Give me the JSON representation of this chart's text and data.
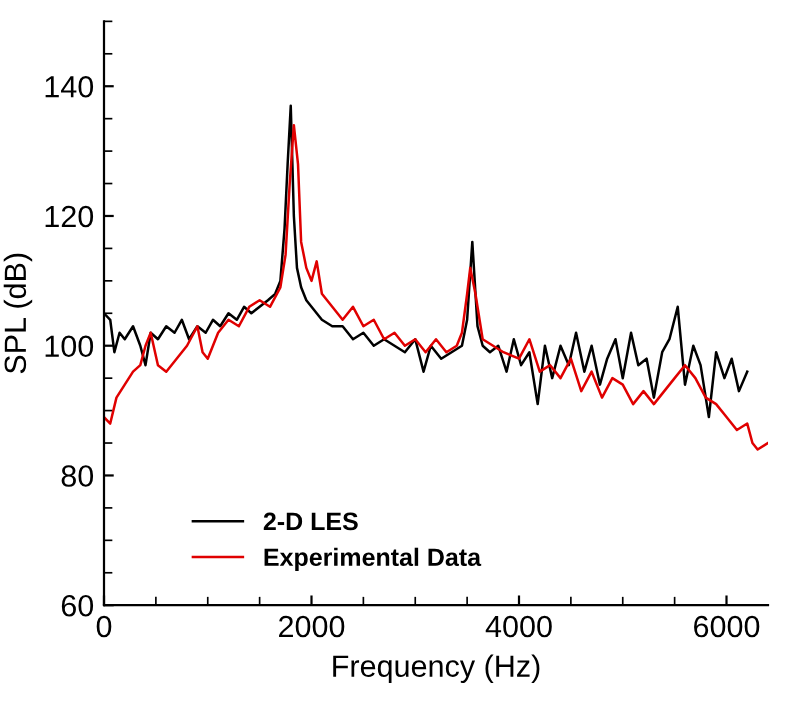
{
  "chart_data": {
    "type": "line",
    "xlabel": "Frequency (Hz)",
    "ylabel": "SPL (dB)",
    "xlim": [
      0,
      6400
    ],
    "ylim": [
      60,
      150
    ],
    "xticks": [
      0,
      2000,
      4000,
      6000
    ],
    "yticks": [
      60,
      80,
      100,
      120,
      140
    ],
    "grid": false,
    "legend": "bottom left",
    "marker": "none",
    "line_style": "solid",
    "series": [
      {
        "name": "2-D LES",
        "color": "#000000",
        "x": [
          0,
          60,
          100,
          150,
          200,
          280,
          350,
          400,
          450,
          520,
          600,
          680,
          750,
          820,
          900,
          980,
          1050,
          1120,
          1200,
          1280,
          1350,
          1420,
          1500,
          1580,
          1650,
          1700,
          1740,
          1770,
          1800,
          1830,
          1860,
          1900,
          1950,
          2000,
          2100,
          2200,
          2300,
          2400,
          2500,
          2600,
          2700,
          2800,
          2900,
          3000,
          3080,
          3150,
          3250,
          3350,
          3450,
          3500,
          3550,
          3600,
          3650,
          3720,
          3800,
          3880,
          3950,
          4020,
          4100,
          4180,
          4250,
          4320,
          4400,
          4480,
          4550,
          4630,
          4700,
          4780,
          4850,
          4930,
          5000,
          5080,
          5150,
          5230,
          5300,
          5380,
          5450,
          5530,
          5600,
          5680,
          5750,
          5830,
          5900,
          5980,
          6050,
          6120,
          6200
        ],
        "values": [
          105,
          104,
          99,
          102,
          101,
          103,
          100,
          97,
          102,
          101,
          103,
          102,
          104,
          101,
          103,
          102,
          104,
          103,
          105,
          104,
          106,
          105,
          106,
          107,
          108,
          110,
          118,
          128,
          137,
          120,
          112,
          109,
          107,
          106,
          104,
          103,
          103,
          101,
          102,
          100,
          101,
          100,
          99,
          101,
          96,
          100,
          98,
          99,
          100,
          104,
          116,
          103,
          100,
          99,
          100,
          96,
          101,
          97,
          99,
          91,
          100,
          95,
          100,
          97,
          102,
          96,
          100,
          94,
          98,
          101,
          95,
          102,
          97,
          98,
          92,
          99,
          101,
          106,
          94,
          100,
          97,
          89,
          99,
          95,
          98,
          93,
          96
        ]
      },
      {
        "name": "Experimental Data",
        "color": "#e00000",
        "x": [
          0,
          60,
          120,
          200,
          280,
          350,
          400,
          450,
          520,
          600,
          700,
          800,
          900,
          950,
          1000,
          1100,
          1200,
          1300,
          1400,
          1500,
          1600,
          1700,
          1750,
          1790,
          1830,
          1870,
          1900,
          1950,
          2000,
          2050,
          2100,
          2200,
          2300,
          2400,
          2500,
          2600,
          2700,
          2800,
          2900,
          3000,
          3100,
          3200,
          3300,
          3400,
          3450,
          3500,
          3530,
          3580,
          3650,
          3750,
          3850,
          4000,
          4100,
          4200,
          4300,
          4400,
          4500,
          4600,
          4700,
          4800,
          4900,
          5000,
          5100,
          5200,
          5300,
          5400,
          5500,
          5600,
          5700,
          5800,
          5900,
          6000,
          6100,
          6200,
          6250,
          6300,
          6400
        ],
        "values": [
          89,
          88,
          92,
          94,
          96,
          97,
          100,
          102,
          97,
          96,
          98,
          100,
          103,
          99,
          98,
          102,
          104,
          103,
          106,
          107,
          106,
          109,
          114,
          125,
          134,
          128,
          116,
          112,
          110,
          113,
          108,
          106,
          104,
          106,
          103,
          104,
          101,
          102,
          100,
          101,
          99,
          101,
          99,
          100,
          102,
          108,
          112,
          108,
          101,
          100,
          99,
          98,
          101,
          96,
          97,
          95,
          98,
          93,
          96,
          92,
          95,
          94,
          91,
          93,
          91,
          93,
          95,
          97,
          95,
          92,
          91,
          89,
          87,
          88,
          85,
          84,
          85
        ]
      }
    ]
  }
}
